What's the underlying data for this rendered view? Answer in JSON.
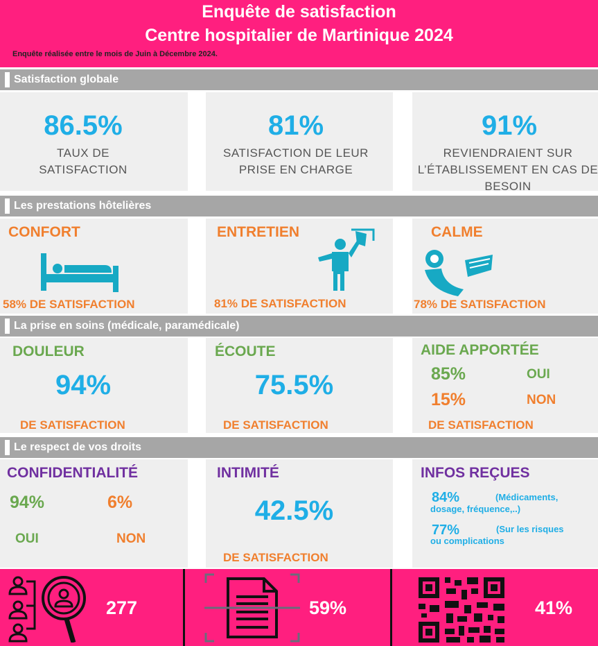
{
  "header": {
    "title_line1": "Enquête de satisfaction",
    "title_line2": "Centre hospitalier de Martinique 2024",
    "note": "Enquête réalisée entre le mois de Juin à Décembre 2024."
  },
  "section1": {
    "title": "Satisfaction globale",
    "cards": [
      {
        "value": "86.5%",
        "label": "TAUX DE SATISFACTION"
      },
      {
        "value": "81%",
        "label": "SATISFACTION DE LEUR PRISE EN CHARGE"
      },
      {
        "value": "91%",
        "label": "REVIENDRAIENT SUR L’ÉTABLISSEMENT EN CAS DE BESOIN"
      }
    ]
  },
  "section2": {
    "title": "Les prestations hôtelières",
    "cards": [
      {
        "title": "CONFORT",
        "caption": "58% DE SATISFACTION",
        "icon": "bed-icon"
      },
      {
        "title": "ENTRETIEN",
        "caption": "81% DE SATISFACTION",
        "icon": "cleaning-person-icon"
      },
      {
        "title": "CALME",
        "caption": "78% DE SATISFACTION",
        "icon": "sleeping-person-icon"
      }
    ]
  },
  "section3": {
    "title": "La prise en soins (médicale, paramédicale)",
    "douleur": {
      "title": "DOULEUR",
      "value": "94%",
      "caption": "DE SATISFACTION"
    },
    "ecoute": {
      "title": "ÉCOUTE",
      "value": "75.5%",
      "caption": "DE SATISFACTION"
    },
    "aide": {
      "title": "AIDE APPORTÉE",
      "oui_value": "85%",
      "oui_label": "OUI",
      "non_value": "15%",
      "non_label": "NON",
      "caption": "DE SATISFACTION"
    }
  },
  "section4": {
    "title": "Le respect de vos droits",
    "confidentialite": {
      "title": "CONFIDENTIALITÉ",
      "oui_value": "94%",
      "non_value": "6%",
      "oui_label": "OUI",
      "non_label": "NON"
    },
    "intimite": {
      "title": "INTIMITÉ",
      "value": "42.5%",
      "caption": "DE SATISFACTION"
    },
    "infos": {
      "title": "INFOS REÇUES",
      "v1": "84%",
      "d1a": "(Médicaments,",
      "d1b": "dosage, fréquence,..)",
      "v2": "77%",
      "d2a": "(Sur les risques",
      "d2b": "ou complications"
    }
  },
  "footer": {
    "stat1": "277",
    "stat2": "59%",
    "stat3": "41%"
  },
  "colors": {
    "pink": "#ff1f7f",
    "blue": "#1faee6",
    "orange": "#f07f2e",
    "green": "#6aa84f",
    "purple": "#7030a0",
    "teal": "#17a9c4",
    "gray_bar": "#a6a6a6"
  }
}
